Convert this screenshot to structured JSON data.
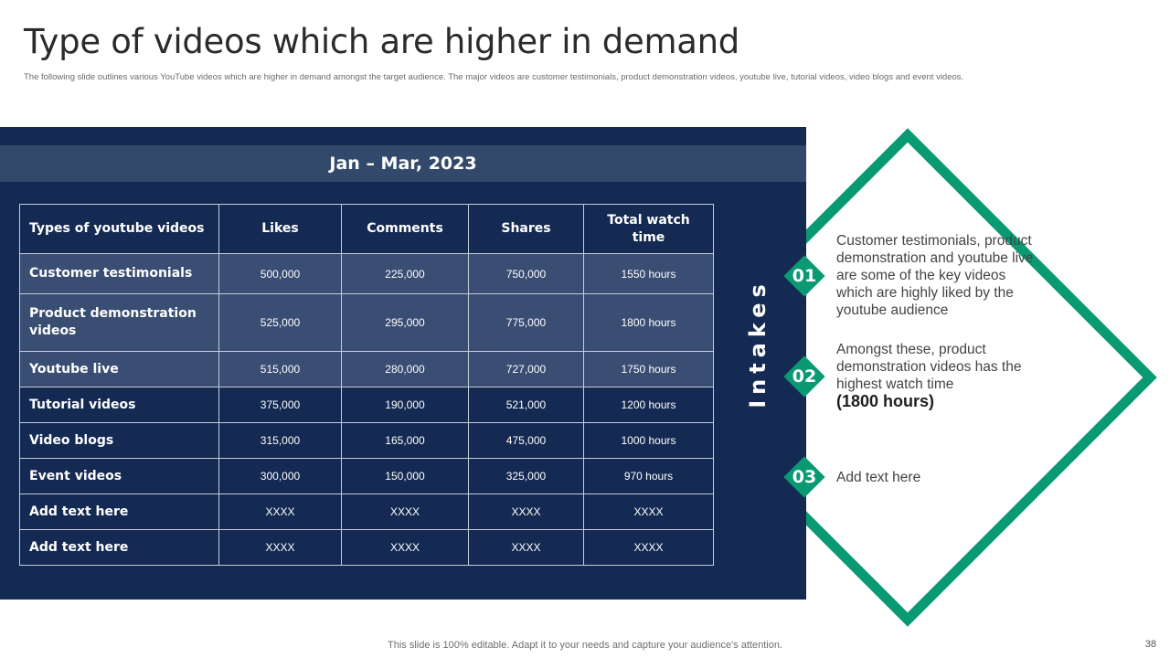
{
  "slide": {
    "title": "Type of videos which are higher in demand",
    "subtitle": "The following slide outlines various YouTube videos which are higher in demand amongst the target audience. The major videos are customer testimonials, product demonstration videos, youtube live, tutorial videos, video blogs and event videos.",
    "period": "Jan – Mar, 2023",
    "side_label": "Intakes",
    "footer": "This slide is 100% editable. Adapt it to your needs and capture your audience's attention.",
    "page_number": "38",
    "accent_color": "#0a9a73",
    "panel_color": "#142a52"
  },
  "table": {
    "headers": [
      "Types of youtube videos",
      "Likes",
      "Comments",
      "Shares",
      "Total watch time"
    ],
    "rows": [
      [
        "Customer testimonials",
        "500,000",
        "225,000",
        "750,000",
        "1550 hours"
      ],
      [
        "Product demonstration videos",
        "525,000",
        "295,000",
        "775,000",
        "1800 hours"
      ],
      [
        "Youtube live",
        "515,000",
        "280,000",
        "727,000",
        "1750 hours"
      ],
      [
        "Tutorial videos",
        "375,000",
        "190,000",
        "521,000",
        "1200 hours"
      ],
      [
        "Video blogs",
        "315,000",
        "165,000",
        "475,000",
        "1000 hours"
      ],
      [
        "Event videos",
        "300,000",
        "150,000",
        "325,000",
        "970 hours"
      ],
      [
        "Add text here",
        "XXXX",
        "XXXX",
        "XXXX",
        "XXXX"
      ],
      [
        "Add text here",
        "XXXX",
        "XXXX",
        "XXXX",
        "XXXX"
      ]
    ]
  },
  "intakes": [
    {
      "number": "01",
      "text": "Customer testimonials, product demonstration and youtube live are some of the key videos which are highly liked by the youtube audience"
    },
    {
      "number": "02",
      "text": "Amongst these, product demonstration videos has the highest watch time",
      "highlight": "(1800 hours)"
    },
    {
      "number": "03",
      "text": "Add text here"
    }
  ]
}
